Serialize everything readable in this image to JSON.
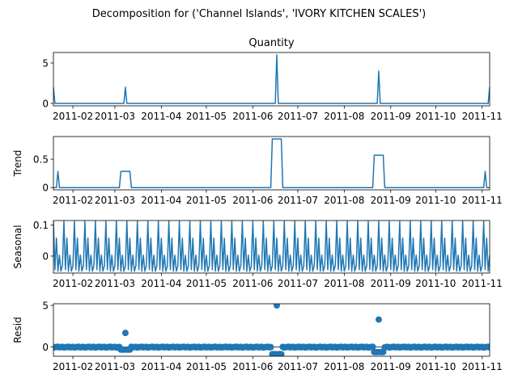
{
  "figure": {
    "suptitle": "Decomposition for ('Channel Islands', 'IVORY KITCHEN SCALES')"
  },
  "colors": {
    "line": "#1f77b4",
    "marker": "#1f77b4",
    "axes": "#000000",
    "background": "#ffffff"
  },
  "chart_data": [
    {
      "type": "line",
      "panel": "observed",
      "title": "Quantity",
      "ylabel": "",
      "ylim": [
        -0.3,
        6.3
      ],
      "yticks": [
        0,
        5
      ],
      "xticks": [
        "2011-02",
        "2011-03",
        "2011-04",
        "2011-05",
        "2011-06",
        "2011-07",
        "2011-08",
        "2011-09",
        "2011-10",
        "2011-11"
      ],
      "x_range": [
        "2011-01-19",
        "2011-11-06"
      ],
      "baseline": 0,
      "spikes": [
        {
          "x": "2011-01-19",
          "y": 2
        },
        {
          "x": "2011-03-08",
          "y": 2
        },
        {
          "x": "2011-06-17",
          "y": 6
        },
        {
          "x": "2011-08-24",
          "y": 4
        },
        {
          "x": "2011-11-06",
          "y": 2
        }
      ]
    },
    {
      "type": "line",
      "panel": "trend",
      "title": "",
      "ylabel": "Trend",
      "ylim": [
        -0.04,
        0.9
      ],
      "yticks": [
        0.0,
        0.5
      ],
      "xticks": [
        "2011-02",
        "2011-03",
        "2011-04",
        "2011-05",
        "2011-06",
        "2011-07",
        "2011-08",
        "2011-09",
        "2011-10",
        "2011-11"
      ],
      "x_range": [
        "2011-01-19",
        "2011-11-06"
      ],
      "baseline": 0,
      "plateaus": [
        {
          "start": "2011-01-22",
          "end": "2011-01-22",
          "y": 0.286
        },
        {
          "start": "2011-03-05",
          "end": "2011-03-11",
          "y": 0.286
        },
        {
          "start": "2011-06-14",
          "end": "2011-06-20",
          "y": 0.857
        },
        {
          "start": "2011-08-21",
          "end": "2011-08-27",
          "y": 0.571
        },
        {
          "start": "2011-11-03",
          "end": "2011-11-03",
          "y": 0.286
        }
      ]
    },
    {
      "type": "line",
      "panel": "seasonal",
      "title": "",
      "ylabel": "Seasonal",
      "ylim": [
        -0.055,
        0.115
      ],
      "yticks": [
        0.0,
        0.1
      ],
      "xticks": [
        "2011-02",
        "2011-03",
        "2011-04",
        "2011-05",
        "2011-06",
        "2011-07",
        "2011-08",
        "2011-09",
        "2011-10",
        "2011-11"
      ],
      "x_range": [
        "2011-01-19",
        "2011-11-06"
      ],
      "period_days": 7,
      "pattern": [
        0.113,
        -0.044,
        0.058,
        -0.049,
        0.003,
        -0.049,
        -0.032
      ]
    },
    {
      "type": "scatter",
      "panel": "resid",
      "title": "",
      "ylabel": "Resid",
      "ylim": [
        -1.1,
        5.2
      ],
      "yticks": [
        0,
        5
      ],
      "xticks": [
        "2011-02",
        "2011-03",
        "2011-04",
        "2011-05",
        "2011-06",
        "2011-07",
        "2011-08",
        "2011-09",
        "2011-10",
        "2011-11"
      ],
      "x_range": [
        "2011-01-19",
        "2011-11-06"
      ],
      "outliers": [
        {
          "x": "2011-03-08",
          "y": 1.7
        },
        {
          "x": "2011-06-17",
          "y": 5.0
        },
        {
          "x": "2011-08-24",
          "y": 3.3
        }
      ],
      "dips": [
        {
          "start": "2011-03-05",
          "end": "2011-03-11",
          "y": -0.3
        },
        {
          "start": "2011-06-14",
          "end": "2011-06-20",
          "y": -0.85
        },
        {
          "start": "2011-08-21",
          "end": "2011-08-27",
          "y": -0.6
        }
      ]
    }
  ]
}
